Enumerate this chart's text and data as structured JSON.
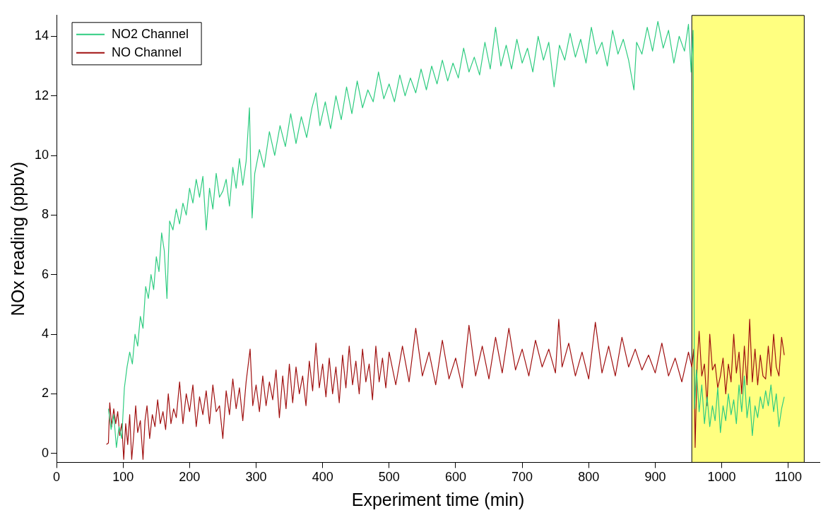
{
  "chart_data": {
    "type": "line",
    "xlabel": "Experiment time (min)",
    "ylabel": "NOx reading (ppbv)",
    "xlim": [
      0,
      1147
    ],
    "xticks": [
      0,
      100,
      200,
      300,
      400,
      500,
      600,
      700,
      800,
      900,
      1000,
      1100
    ],
    "ylim": [
      -0.3,
      14.7
    ],
    "yticks": [
      0,
      2,
      4,
      6,
      8,
      10,
      12,
      14
    ],
    "grid": false,
    "legend": "top left",
    "marker": "none",
    "line_style": "solid",
    "bands": [
      {
        "axis": "x",
        "from": 955,
        "to": 1124,
        "color": "#ffff80"
      }
    ],
    "series": [
      {
        "name": "NO2 Channel",
        "color": "#2ecc80",
        "x": [
          78,
          82,
          86,
          90,
          94,
          98,
          102,
          106,
          110,
          114,
          118,
          122,
          126,
          130,
          134,
          138,
          142,
          146,
          150,
          154,
          158,
          162,
          166,
          170,
          175,
          180,
          185,
          190,
          195,
          200,
          205,
          210,
          215,
          220,
          225,
          230,
          235,
          240,
          245,
          250,
          255,
          260,
          265,
          270,
          275,
          280,
          285,
          290,
          292,
          294,
          298,
          305,
          312,
          320,
          328,
          336,
          344,
          352,
          360,
          368,
          376,
          384,
          390,
          396,
          404,
          412,
          420,
          428,
          436,
          444,
          452,
          460,
          468,
          476,
          484,
          492,
          500,
          508,
          516,
          524,
          532,
          540,
          548,
          556,
          564,
          572,
          580,
          588,
          596,
          604,
          612,
          620,
          628,
          636,
          644,
          652,
          660,
          668,
          676,
          684,
          692,
          700,
          708,
          716,
          724,
          732,
          740,
          748,
          756,
          764,
          772,
          780,
          788,
          796,
          804,
          812,
          820,
          828,
          836,
          844,
          852,
          860,
          868,
          872,
          880,
          888,
          896,
          904,
          912,
          920,
          928,
          936,
          944,
          950,
          954,
          957,
          959,
          962,
          966,
          970,
          974,
          978,
          982,
          986,
          990,
          994,
          998,
          1002,
          1006,
          1010,
          1014,
          1018,
          1022,
          1026,
          1030,
          1034,
          1038,
          1042,
          1046,
          1050,
          1054,
          1058,
          1062,
          1066,
          1070,
          1074,
          1078,
          1082,
          1086,
          1090,
          1094
        ],
        "values": [
          1.5,
          0.8,
          1.3,
          0.2,
          0.9,
          0.5,
          2.2,
          2.9,
          3.4,
          3.0,
          4.0,
          3.6,
          4.6,
          4.2,
          5.6,
          5.2,
          6.0,
          5.5,
          6.6,
          6.1,
          7.4,
          6.8,
          5.2,
          7.8,
          7.5,
          8.2,
          7.7,
          8.4,
          8.0,
          8.9,
          8.4,
          9.2,
          8.6,
          9.3,
          7.5,
          8.9,
          8.2,
          9.4,
          8.6,
          8.8,
          9.2,
          8.3,
          9.6,
          8.9,
          9.9,
          9.0,
          9.8,
          11.6,
          9.5,
          7.9,
          9.4,
          10.2,
          9.6,
          10.8,
          10.0,
          11.0,
          10.3,
          11.4,
          10.4,
          11.3,
          10.6,
          11.6,
          12.1,
          11.0,
          11.8,
          10.9,
          12.0,
          11.2,
          12.3,
          11.4,
          12.5,
          11.6,
          12.2,
          11.8,
          12.8,
          11.9,
          12.4,
          11.8,
          12.7,
          12.0,
          12.6,
          12.1,
          12.9,
          12.2,
          13.0,
          12.4,
          13.2,
          12.5,
          13.1,
          12.6,
          13.6,
          12.8,
          13.3,
          12.7,
          13.8,
          12.9,
          14.3,
          13.0,
          13.7,
          12.9,
          13.9,
          13.1,
          13.6,
          12.8,
          14.0,
          13.2,
          13.8,
          12.3,
          13.7,
          13.2,
          14.1,
          13.3,
          13.9,
          13.1,
          14.3,
          13.4,
          13.8,
          13.0,
          14.2,
          13.4,
          13.9,
          13.2,
          12.2,
          13.8,
          13.4,
          14.3,
          13.5,
          14.5,
          13.6,
          14.2,
          13.1,
          14.0,
          13.5,
          14.4,
          12.8,
          14.2,
          1.5,
          2.8,
          1.4,
          2.3,
          1.0,
          1.9,
          0.9,
          1.6,
          1.1,
          2.2,
          0.7,
          1.6,
          1.1,
          2.0,
          1.3,
          1.8,
          1.0,
          2.3,
          1.4,
          2.6,
          1.2,
          1.9,
          0.6,
          1.6,
          1.2,
          1.9,
          1.5,
          2.1,
          1.6,
          2.3,
          1.4,
          2.0,
          0.9,
          1.5,
          1.9
        ]
      },
      {
        "name": "NO Channel",
        "color": "#a01010",
        "x": [
          75,
          78,
          80,
          83,
          86,
          89,
          92,
          95,
          98,
          101,
          104,
          107,
          110,
          113,
          116,
          119,
          122,
          126,
          130,
          133,
          136,
          140,
          144,
          148,
          152,
          156,
          160,
          164,
          168,
          172,
          176,
          180,
          185,
          190,
          195,
          200,
          205,
          210,
          215,
          220,
          225,
          230,
          235,
          240,
          245,
          250,
          255,
          260,
          265,
          270,
          275,
          280,
          285,
          291,
          295,
          300,
          305,
          310,
          315,
          320,
          325,
          330,
          335,
          340,
          345,
          350,
          355,
          360,
          365,
          370,
          375,
          380,
          385,
          390,
          395,
          400,
          405,
          410,
          415,
          420,
          425,
          430,
          435,
          440,
          445,
          450,
          455,
          460,
          465,
          470,
          475,
          480,
          485,
          490,
          495,
          500,
          510,
          520,
          530,
          540,
          550,
          560,
          570,
          580,
          590,
          600,
          610,
          620,
          630,
          640,
          650,
          660,
          670,
          680,
          690,
          700,
          710,
          720,
          730,
          740,
          750,
          755,
          760,
          770,
          780,
          790,
          800,
          810,
          820,
          830,
          840,
          850,
          860,
          870,
          880,
          890,
          900,
          910,
          920,
          930,
          940,
          950,
          955,
          958,
          960,
          963,
          966,
          970,
          974,
          978,
          982,
          986,
          990,
          994,
          998,
          1002,
          1006,
          1010,
          1014,
          1018,
          1022,
          1026,
          1030,
          1034,
          1038,
          1042,
          1046,
          1050,
          1054,
          1058,
          1062,
          1066,
          1070,
          1074,
          1078,
          1082,
          1086,
          1090,
          1094
        ],
        "values": [
          0.3,
          0.35,
          1.7,
          0.9,
          1.5,
          1.0,
          1.4,
          0.6,
          1.0,
          -0.2,
          1.0,
          0.3,
          1.3,
          -0.2,
          0.6,
          1.6,
          0.7,
          1.1,
          -0.2,
          1.1,
          1.6,
          0.5,
          1.3,
          0.9,
          1.8,
          1.0,
          1.4,
          0.8,
          2.0,
          1.0,
          1.5,
          1.2,
          2.4,
          1.0,
          2.0,
          1.4,
          2.3,
          0.9,
          1.9,
          1.3,
          2.1,
          1.0,
          2.3,
          1.4,
          1.6,
          0.5,
          2.1,
          1.3,
          2.5,
          1.5,
          2.2,
          1.1,
          2.4,
          3.5,
          1.6,
          2.3,
          1.4,
          2.6,
          1.6,
          2.4,
          1.8,
          2.8,
          1.2,
          2.6,
          1.5,
          3.0,
          1.7,
          2.9,
          2.0,
          2.6,
          1.6,
          3.1,
          2.1,
          3.7,
          2.2,
          3.0,
          1.9,
          3.2,
          2.0,
          2.9,
          1.7,
          3.3,
          2.2,
          3.6,
          2.3,
          3.1,
          2.0,
          3.5,
          2.4,
          3.0,
          1.8,
          3.6,
          2.4,
          3.2,
          2.2,
          3.4,
          2.3,
          3.6,
          2.4,
          4.2,
          2.6,
          3.4,
          2.3,
          3.8,
          2.5,
          3.2,
          2.2,
          4.3,
          2.6,
          3.6,
          2.5,
          3.9,
          2.7,
          4.2,
          2.8,
          3.5,
          2.6,
          3.8,
          2.9,
          3.5,
          2.7,
          4.5,
          2.9,
          3.7,
          2.6,
          3.4,
          2.5,
          4.4,
          2.7,
          3.6,
          2.6,
          3.9,
          2.9,
          3.5,
          2.8,
          3.3,
          2.7,
          3.7,
          2.6,
          3.2,
          2.4,
          3.4,
          2.9,
          3.5,
          0.2,
          3.0,
          4.1,
          2.6,
          3.0,
          1.6,
          4.0,
          2.8,
          3.0,
          2.2,
          2.6,
          3.2,
          2.0,
          3.0,
          2.4,
          4.0,
          2.7,
          3.4,
          2.0,
          3.6,
          2.3,
          4.5,
          2.4,
          3.5,
          2.3,
          3.3,
          2.6,
          2.5,
          3.6,
          2.6,
          4.0,
          2.9,
          2.6,
          3.9,
          3.3
        ]
      }
    ]
  }
}
